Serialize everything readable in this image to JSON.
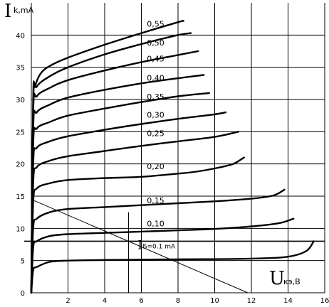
{
  "chart_data": {
    "type": "line",
    "title": "",
    "ylabel_main": "I",
    "ylabel_sub": "k,mA",
    "xlabel_main": "U",
    "xlabel_sub": "кэ,В",
    "xlim": [
      0,
      16
    ],
    "ylim": [
      0,
      45
    ],
    "x_ticks": [
      2,
      4,
      6,
      8,
      10,
      12,
      14,
      16
    ],
    "y_ticks": [
      0,
      5,
      10,
      15,
      20,
      25,
      30,
      35,
      40
    ],
    "parameter_prefix_main": "I",
    "parameter_prefix_sub": "Б=",
    "series": [
      {
        "label": "0.1 mA",
        "points": [
          [
            0,
            0
          ],
          [
            0.1,
            3.5
          ],
          [
            0.3,
            4.0
          ],
          [
            1,
            4.8
          ],
          [
            2,
            5.0
          ],
          [
            4,
            5.1
          ],
          [
            8,
            5.2
          ],
          [
            12,
            5.3
          ],
          [
            14,
            5.6
          ],
          [
            15,
            6.5
          ],
          [
            15.4,
            8.0
          ]
        ]
      },
      {
        "label": "0,10",
        "points": [
          [
            0,
            0
          ],
          [
            0.1,
            7
          ],
          [
            0.3,
            8.0
          ],
          [
            1,
            8.8
          ],
          [
            2,
            9.1
          ],
          [
            4,
            9.3
          ],
          [
            6,
            9.5
          ],
          [
            8,
            9.7
          ],
          [
            10,
            9.9
          ],
          [
            12,
            10.3
          ],
          [
            13.5,
            10.8
          ],
          [
            14.3,
            11.5
          ]
        ]
      },
      {
        "label": "0,15",
        "points": [
          [
            0,
            0
          ],
          [
            0.1,
            10
          ],
          [
            0.3,
            11.5
          ],
          [
            1,
            12.5
          ],
          [
            2,
            13.0
          ],
          [
            4,
            13.3
          ],
          [
            6,
            13.6
          ],
          [
            8,
            13.9
          ],
          [
            10,
            14.2
          ],
          [
            12,
            14.6
          ],
          [
            13.2,
            15.1
          ],
          [
            13.8,
            16.0
          ]
        ]
      },
      {
        "label": "0,20",
        "points": [
          [
            0,
            0
          ],
          [
            0.1,
            14
          ],
          [
            0.3,
            16.2
          ],
          [
            1,
            17.0
          ],
          [
            2,
            17.5
          ],
          [
            4,
            17.8
          ],
          [
            6,
            18.0
          ],
          [
            8,
            18.5
          ],
          [
            9,
            18.8
          ],
          [
            10,
            19.3
          ],
          [
            11,
            20.0
          ],
          [
            11.6,
            21.0
          ]
        ]
      },
      {
        "label": "0,25",
        "points": [
          [
            0,
            0
          ],
          [
            0.1,
            17
          ],
          [
            0.3,
            19.5
          ],
          [
            1,
            20.5
          ],
          [
            2,
            21.2
          ],
          [
            4,
            22.0
          ],
          [
            6,
            22.8
          ],
          [
            8,
            23.5
          ],
          [
            10,
            24.2
          ],
          [
            11.3,
            25.0
          ]
        ]
      },
      {
        "label": "0,30",
        "points": [
          [
            0,
            0
          ],
          [
            0.1,
            20
          ],
          [
            0.3,
            22.5
          ],
          [
            1,
            23.5
          ],
          [
            2,
            24.3
          ],
          [
            4,
            25.3
          ],
          [
            6,
            26.2
          ],
          [
            8,
            27.0
          ],
          [
            10,
            27.7
          ],
          [
            10.6,
            28.0
          ]
        ]
      },
      {
        "label": "0,35",
        "points": [
          [
            0,
            0
          ],
          [
            0.1,
            23
          ],
          [
            0.3,
            25.5
          ],
          [
            1,
            26.5
          ],
          [
            2,
            27.5
          ],
          [
            4,
            28.6
          ],
          [
            6,
            29.6
          ],
          [
            8,
            30.5
          ],
          [
            9.7,
            31.0
          ]
        ]
      },
      {
        "label": "0,40",
        "points": [
          [
            0,
            0
          ],
          [
            0.1,
            25.5
          ],
          [
            0.3,
            28.0
          ],
          [
            1,
            29.2
          ],
          [
            2,
            30.3
          ],
          [
            4,
            31.5
          ],
          [
            6,
            32.5
          ],
          [
            8,
            33.3
          ],
          [
            9.4,
            33.8
          ]
        ]
      },
      {
        "label": "0,45",
        "points": [
          [
            0,
            0
          ],
          [
            0.1,
            28
          ],
          [
            0.3,
            30.5
          ],
          [
            1,
            31.8
          ],
          [
            2,
            33.0
          ],
          [
            4,
            34.5
          ],
          [
            6,
            35.8
          ],
          [
            8,
            36.9
          ],
          [
            9.1,
            37.5
          ]
        ]
      },
      {
        "label": "0,50",
        "points": [
          [
            0,
            0
          ],
          [
            0.1,
            29.5
          ],
          [
            0.3,
            32.0
          ],
          [
            1,
            33.6
          ],
          [
            2,
            35.0
          ],
          [
            4,
            37.0
          ],
          [
            6,
            38.6
          ],
          [
            8,
            40.0
          ],
          [
            8.7,
            40.3
          ]
        ]
      },
      {
        "label": "0,55",
        "points": [
          [
            0,
            0
          ],
          [
            0.1,
            30
          ],
          [
            0.2,
            32.0
          ],
          [
            0.5,
            34.0
          ],
          [
            1,
            35.2
          ],
          [
            2,
            36.5
          ],
          [
            4,
            38.5
          ],
          [
            6,
            40.3
          ],
          [
            8,
            42.0
          ],
          [
            8.3,
            42.2
          ]
        ]
      }
    ],
    "load_line": {
      "points": [
        [
          0,
          14.5
        ],
        [
          11.8,
          0
        ]
      ]
    },
    "operating_point": {
      "x": 5.3,
      "y": 12.5
    },
    "grid": true
  }
}
